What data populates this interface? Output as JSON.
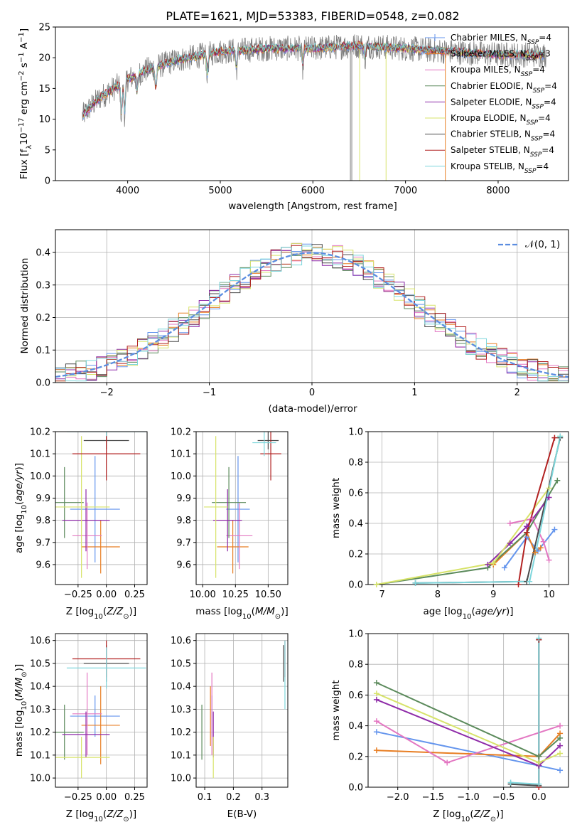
{
  "colors": [
    "#6495ED",
    "#E87E23",
    "#E377C2",
    "#5B8A5B",
    "#8E2BA8",
    "#D7E36A",
    "#4A4A4A",
    "#B22222",
    "#7ED6DC"
  ],
  "legend_labels": [
    {
      "base": "Chabrier MILES, N",
      "sub": "SSP",
      "tail": "=4"
    },
    {
      "base": "Salpeter MILES, N",
      "sub": "SSP",
      "tail": "=3"
    },
    {
      "base": "Kroupa MILES, N",
      "sub": "SSP",
      "tail": "=4"
    },
    {
      "base": "Chabrier ELODIE, N",
      "sub": "SSP",
      "tail": "=4"
    },
    {
      "base": "Salpeter ELODIE, N",
      "sub": "SSP",
      "tail": "=4"
    },
    {
      "base": "Kroupa ELODIE, N",
      "sub": "SSP",
      "tail": "=4"
    },
    {
      "base": "Chabrier STELIB, N",
      "sub": "SSP",
      "tail": "=4"
    },
    {
      "base": "Salpeter STELIB, N",
      "sub": "SSP",
      "tail": "=4"
    },
    {
      "base": "Kroupa STELIB, N",
      "sub": "SSP",
      "tail": "=4"
    }
  ],
  "chart_data": [
    {
      "id": "spectrum",
      "type": "line",
      "title": "PLATE=1621, MJD=53383, FIBERID=0548, z=0.082",
      "xlabel": "wavelength [Angstrom, rest frame]",
      "ylabel": "Flux [f_λ 10^-17 erg cm^-2 s^-1 A^-1]",
      "xlim": [
        3220,
        8760
      ],
      "ylim": [
        0,
        25
      ],
      "xticks": [
        4000,
        5000,
        6000,
        7000,
        8000
      ],
      "yticks": [
        0,
        5,
        10,
        15,
        20,
        25
      ],
      "data_color": "#7f7f7f",
      "continuum": [
        [
          3510,
          10.5
        ],
        [
          3600,
          12
        ],
        [
          3700,
          13.5
        ],
        [
          3800,
          14.5
        ],
        [
          3900,
          15.5
        ],
        [
          4000,
          16.5
        ],
        [
          4200,
          18
        ],
        [
          4500,
          19.5
        ],
        [
          5000,
          21
        ],
        [
          5500,
          21.5
        ],
        [
          6000,
          21.5
        ],
        [
          6500,
          22
        ],
        [
          7000,
          21.5
        ],
        [
          7500,
          21
        ],
        [
          8000,
          20.5
        ],
        [
          8500,
          20.5
        ]
      ],
      "absorption": [
        [
          3933,
          5.5
        ],
        [
          3968,
          5.5
        ],
        [
          4101,
          3
        ],
        [
          4304,
          4
        ],
        [
          4861,
          3.5
        ],
        [
          5175,
          3
        ],
        [
          5890,
          3
        ],
        [
          6563,
          2
        ]
      ],
      "dropouts": [
        6405,
        6420,
        6505,
        6790,
        7430
      ],
      "model_start_wave": 3520,
      "model_end_wave": 8500
    },
    {
      "id": "residuals",
      "type": "histogram",
      "xlabel": "(data-model)/error",
      "ylabel": "Normed distribution",
      "xlim": [
        -2.5,
        2.5
      ],
      "ylim": [
        0,
        0.47
      ],
      "xticks": [
        -2,
        -1,
        0,
        1,
        2
      ],
      "yticks": [
        0,
        0.1,
        0.2,
        0.3,
        0.4
      ],
      "bin_width": 0.1,
      "reference_curve": "N(0,1)",
      "reference_color": "#5B8DE0",
      "legend_label": "𝒩(0, 1)",
      "series_count": 9
    },
    {
      "id": "age_vs_Z",
      "type": "errorbar",
      "xlabel": "Z [log10(Z/Z⊙)]",
      "ylabel": "age [log10(age/yr)]",
      "xlim": [
        -0.45,
        0.36
      ],
      "ylim": [
        9.51,
        10.2
      ],
      "xticks": [
        -0.25,
        0.0,
        0.25
      ],
      "yticks": [
        9.6,
        9.7,
        9.8,
        9.9,
        10.0,
        10.1,
        10.2
      ],
      "points": [
        {
          "x": -0.1,
          "xerr": 0.22,
          "y": 9.85,
          "yerr": 0.24,
          "color": 0
        },
        {
          "x": -0.05,
          "xerr": 0.17,
          "y": 9.68,
          "yerr": 0.12,
          "color": 1
        },
        {
          "x": -0.17,
          "xerr": 0.13,
          "y": 9.73,
          "yerr": 0.15,
          "color": 2
        },
        {
          "x": -0.37,
          "xerr": 0.17,
          "y": 9.88,
          "yerr": 0.16,
          "color": 3
        },
        {
          "x": -0.18,
          "xerr": 0.21,
          "y": 9.8,
          "yerr": 0.14,
          "color": 4
        },
        {
          "x": -0.22,
          "xerr": 0.25,
          "y": 9.86,
          "yerr": 0.32,
          "color": 5
        },
        {
          "x": 0.0,
          "xerr": 0.2,
          "y": 10.16,
          "yerr": 0.04,
          "color": 6
        },
        {
          "x": 0.0,
          "xerr": 0.3,
          "y": 10.1,
          "yerr": 0.12,
          "color": 7
        },
        {
          "x": 0.0,
          "xerr": 0.35,
          "y": 10.2,
          "yerr": 0.02,
          "color": 8
        }
      ]
    },
    {
      "id": "age_vs_mass",
      "type": "errorbar",
      "xlabel": "mass [log10(M/M⊙)]",
      "ylabel": "",
      "xlim": [
        9.95,
        10.65
      ],
      "ylim": [
        9.51,
        10.2
      ],
      "xticks": [
        10.0,
        10.25,
        10.5
      ],
      "yticks": [
        9.6,
        9.7,
        9.8,
        9.9,
        10.0,
        10.1,
        10.2
      ],
      "points": [
        {
          "x": 10.27,
          "xerr": 0.09,
          "y": 9.85,
          "yerr": 0.24,
          "color": 0
        },
        {
          "x": 10.23,
          "xerr": 0.12,
          "y": 9.68,
          "yerr": 0.12,
          "color": 1
        },
        {
          "x": 10.28,
          "xerr": 0.1,
          "y": 9.73,
          "yerr": 0.15,
          "color": 2
        },
        {
          "x": 10.2,
          "xerr": 0.13,
          "y": 9.88,
          "yerr": 0.16,
          "color": 3
        },
        {
          "x": 10.19,
          "xerr": 0.11,
          "y": 9.8,
          "yerr": 0.14,
          "color": 4
        },
        {
          "x": 10.1,
          "xerr": 0.09,
          "y": 9.86,
          "yerr": 0.32,
          "color": 5
        },
        {
          "x": 10.5,
          "xerr": 0.08,
          "y": 10.16,
          "yerr": 0.04,
          "color": 6
        },
        {
          "x": 10.52,
          "xerr": 0.08,
          "y": 10.1,
          "yerr": 0.12,
          "color": 7
        },
        {
          "x": 10.47,
          "xerr": 0.09,
          "y": 10.15,
          "yerr": 0.06,
          "color": 8
        }
      ]
    },
    {
      "id": "weight_vs_age",
      "type": "line",
      "xlabel": "age [log10(age/yr)]",
      "ylabel": "mass weight",
      "xlim": [
        6.75,
        10.35
      ],
      "ylim": [
        0,
        1
      ],
      "xticks": [
        7,
        8,
        9,
        10
      ],
      "yticks": [
        0,
        0.2,
        0.4,
        0.6,
        0.8,
        1.0
      ],
      "series": [
        {
          "color": 0,
          "pts": [
            [
              9.2,
              0.11
            ],
            [
              9.6,
              0.31
            ],
            [
              9.8,
              0.22
            ],
            [
              10.1,
              0.36
            ]
          ]
        },
        {
          "color": 1,
          "pts": [
            [
              9.0,
              0.13
            ],
            [
              9.6,
              0.34
            ],
            [
              9.75,
              0.21
            ],
            [
              9.85,
              0.24
            ]
          ]
        },
        {
          "color": 2,
          "pts": [
            [
              9.3,
              0.4
            ],
            [
              9.7,
              0.43
            ],
            [
              9.9,
              0.28
            ],
            [
              10.0,
              0.16
            ]
          ]
        },
        {
          "color": 3,
          "pts": [
            [
              6.9,
              0.0
            ],
            [
              8.9,
              0.11
            ],
            [
              9.6,
              0.34
            ],
            [
              10.15,
              0.68
            ]
          ]
        },
        {
          "color": 4,
          "pts": [
            [
              8.9,
              0.13
            ],
            [
              9.3,
              0.27
            ],
            [
              9.6,
              0.38
            ],
            [
              10.0,
              0.57
            ]
          ]
        },
        {
          "color": 5,
          "pts": [
            [
              6.9,
              0.0
            ],
            [
              9.0,
              0.14
            ],
            [
              10.0,
              0.63
            ],
            [
              10.2,
              0.97
            ]
          ]
        },
        {
          "color": 6,
          "pts": [
            [
              7.6,
              0.01
            ],
            [
              9.6,
              0.02
            ],
            [
              10.2,
              0.96
            ]
          ]
        },
        {
          "color": 7,
          "pts": [
            [
              9.45,
              0.0
            ],
            [
              9.6,
              0.34
            ],
            [
              10.1,
              0.96
            ]
          ]
        },
        {
          "color": 8,
          "pts": [
            [
              7.6,
              0.01
            ],
            [
              9.65,
              0.02
            ],
            [
              10.2,
              0.97
            ]
          ]
        }
      ]
    },
    {
      "id": "mass_vs_Z",
      "type": "errorbar",
      "xlabel": "Z [log10(Z/Z⊙)]",
      "ylabel": "mass [log10(M/M⊙)]",
      "xlim": [
        -0.45,
        0.36
      ],
      "ylim": [
        9.96,
        10.63
      ],
      "xticks": [
        -0.25,
        0.0,
        0.25
      ],
      "yticks": [
        10.0,
        10.1,
        10.2,
        10.3,
        10.4,
        10.5,
        10.6
      ],
      "points": [
        {
          "x": -0.1,
          "xerr": 0.22,
          "y": 10.27,
          "yerr": 0.09,
          "color": 0
        },
        {
          "x": -0.05,
          "xerr": 0.17,
          "y": 10.23,
          "yerr": 0.17,
          "color": 1
        },
        {
          "x": -0.17,
          "xerr": 0.13,
          "y": 10.28,
          "yerr": 0.18,
          "color": 2
        },
        {
          "x": -0.37,
          "xerr": 0.17,
          "y": 10.2,
          "yerr": 0.12,
          "color": 3
        },
        {
          "x": -0.18,
          "xerr": 0.21,
          "y": 10.19,
          "yerr": 0.1,
          "color": 4
        },
        {
          "x": -0.22,
          "xerr": 0.25,
          "y": 10.09,
          "yerr": 0.09,
          "color": 5
        },
        {
          "x": 0.0,
          "xerr": 0.2,
          "y": 10.5,
          "yerr": 0.08,
          "color": 6
        },
        {
          "x": 0.0,
          "xerr": 0.3,
          "y": 10.52,
          "yerr": 0.08,
          "color": 7
        },
        {
          "x": 0.0,
          "xerr": 0.35,
          "y": 10.48,
          "yerr": 0.09,
          "color": 8
        }
      ]
    },
    {
      "id": "mass_vs_ebv",
      "type": "errorbar",
      "xlabel": "E(B-V)",
      "ylabel": "",
      "xlim": [
        0.07,
        0.39
      ],
      "ylim": [
        9.96,
        10.63
      ],
      "xticks": [
        0.1,
        0.2,
        0.3
      ],
      "yticks": [
        10.0,
        10.1,
        10.2,
        10.3,
        10.4,
        10.5,
        10.6
      ],
      "points": [
        {
          "x": 0.125,
          "xerr": 0,
          "y": 10.27,
          "yerr": 0.09,
          "color": 0
        },
        {
          "x": 0.12,
          "xerr": 0,
          "y": 10.27,
          "yerr": 0.13,
          "color": 1
        },
        {
          "x": 0.125,
          "xerr": 0,
          "y": 10.28,
          "yerr": 0.18,
          "color": 2
        },
        {
          "x": 0.09,
          "xerr": 0,
          "y": 10.2,
          "yerr": 0.12,
          "color": 3
        },
        {
          "x": 0.13,
          "xerr": 0,
          "y": 10.19,
          "yerr": 0.1,
          "color": 4
        },
        {
          "x": 0.13,
          "xerr": 0,
          "y": 10.09,
          "yerr": 0.09,
          "color": 5
        },
        {
          "x": 0.375,
          "xerr": 0,
          "y": 10.5,
          "yerr": 0.08,
          "color": 6
        },
        {
          "x": 0.38,
          "xerr": 0,
          "y": 10.52,
          "yerr": 0.08,
          "color": 7
        },
        {
          "x": 0.38,
          "xerr": 0,
          "y": 10.45,
          "yerr": 0.15,
          "color": 8
        }
      ]
    },
    {
      "id": "weight_vs_Z",
      "type": "line",
      "xlabel": "Z [log10(Z/Z⊙)]",
      "ylabel": "mass weight",
      "xlim": [
        -2.42,
        0.42
      ],
      "ylim": [
        0,
        1
      ],
      "xticks": [
        -2.0,
        -1.5,
        -1.0,
        -0.5,
        0.0
      ],
      "yticks": [
        0,
        0.2,
        0.4,
        0.6,
        0.8,
        1.0
      ],
      "series": [
        {
          "color": 0,
          "pts": [
            [
              -2.3,
              0.36
            ],
            [
              0.0,
              0.14
            ],
            [
              0.3,
              0.11
            ]
          ]
        },
        {
          "color": 1,
          "pts": [
            [
              -2.3,
              0.24
            ],
            [
              0.0,
              0.2
            ],
            [
              0.3,
              0.35
            ]
          ]
        },
        {
          "color": 2,
          "pts": [
            [
              -2.3,
              0.43
            ],
            [
              -1.3,
              0.16
            ],
            [
              0.3,
              0.4
            ]
          ]
        },
        {
          "color": 3,
          "pts": [
            [
              -2.3,
              0.68
            ],
            [
              0.0,
              0.2
            ],
            [
              0.3,
              0.32
            ]
          ]
        },
        {
          "color": 4,
          "pts": [
            [
              -2.3,
              0.57
            ],
            [
              0.0,
              0.14
            ],
            [
              0.3,
              0.27
            ]
          ]
        },
        {
          "color": 5,
          "pts": [
            [
              -2.3,
              0.61
            ],
            [
              0.0,
              0.16
            ],
            [
              0.3,
              0.22
            ]
          ]
        },
        {
          "color": 6,
          "pts": [
            [
              -0.4,
              0.02
            ],
            [
              0.0,
              0.01
            ],
            [
              0.0,
              0.96
            ]
          ]
        },
        {
          "color": 7,
          "pts": [
            [
              0.0,
              0.96
            ],
            [
              0.0,
              0.0
            ]
          ]
        },
        {
          "color": 8,
          "pts": [
            [
              -0.4,
              0.03
            ],
            [
              0.0,
              0.02
            ],
            [
              0.0,
              0.97
            ]
          ]
        }
      ]
    }
  ]
}
